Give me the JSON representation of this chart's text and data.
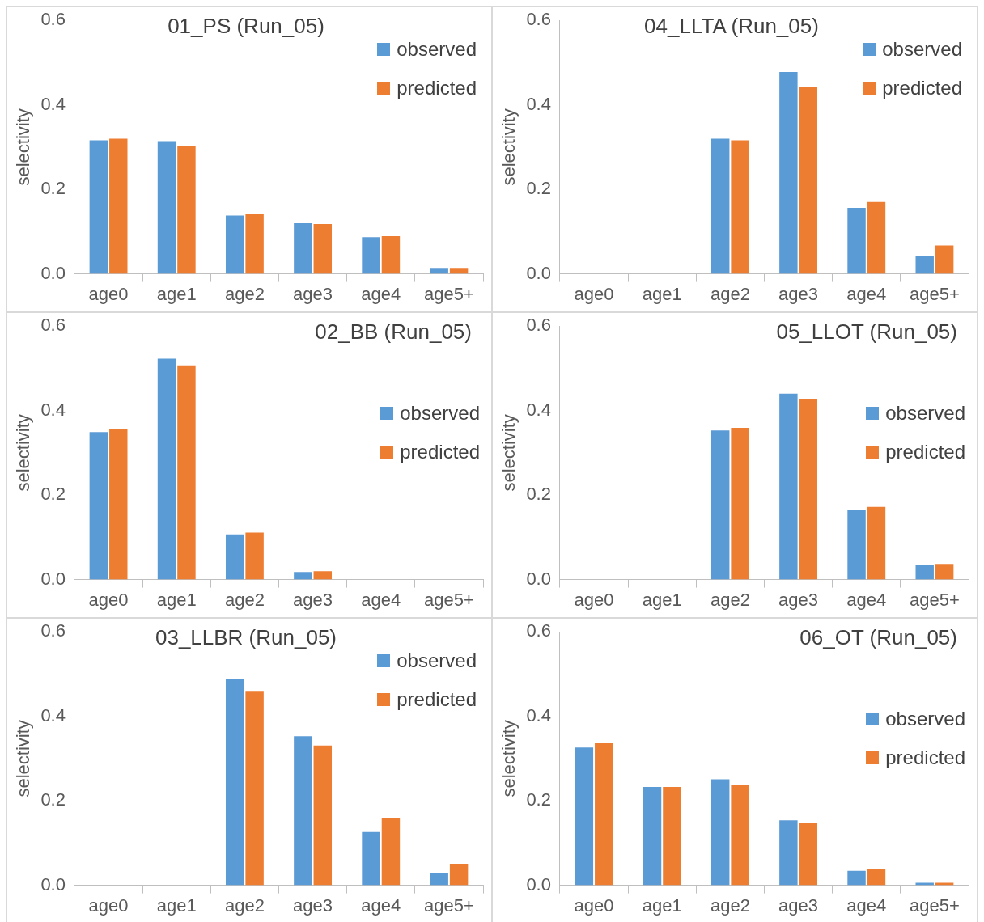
{
  "chart_data": [
    {
      "type": "bar",
      "title": "01_PS (Run_05)",
      "ylabel": "selectivity",
      "categories": [
        "age0",
        "age1",
        "age2",
        "age3",
        "age4",
        "age5+"
      ],
      "series": [
        {
          "name": "observed",
          "color": "#5b9bd5",
          "values": [
            0.316,
            0.314,
            0.138,
            0.12,
            0.087,
            0.014
          ]
        },
        {
          "name": "predicted",
          "color": "#ed7d31",
          "values": [
            0.32,
            0.302,
            0.142,
            0.118,
            0.089,
            0.014
          ]
        }
      ],
      "ylim": [
        0,
        0.6
      ],
      "yticks": [
        {
          "value": 0,
          "label": "0.0"
        },
        {
          "value": 0.2,
          "label": "0.2"
        },
        {
          "value": 0.4,
          "label": "0.4"
        },
        {
          "value": 0.6,
          "label": "0.6"
        }
      ],
      "legend": "top right"
    },
    {
      "type": "bar",
      "title": "04_LLTA (Run_05)",
      "ylabel": "selectivity",
      "categories": [
        "age0",
        "age1",
        "age2",
        "age3",
        "age4",
        "age5+"
      ],
      "series": [
        {
          "name": "observed",
          "color": "#5b9bd5",
          "values": [
            0,
            0,
            0.32,
            0.478,
            0.156,
            0.043
          ]
        },
        {
          "name": "predicted",
          "color": "#ed7d31",
          "values": [
            0,
            0,
            0.316,
            0.442,
            0.17,
            0.067
          ]
        }
      ],
      "ylim": [
        0,
        0.6
      ],
      "yticks": [
        {
          "value": 0,
          "label": "0.0"
        },
        {
          "value": 0.2,
          "label": "0.2"
        },
        {
          "value": 0.4,
          "label": "0.4"
        },
        {
          "value": 0.6,
          "label": "0.6"
        }
      ],
      "legend": "top right"
    },
    {
      "type": "bar",
      "title": "02_BB (Run_05)",
      "ylabel": "selectivity",
      "categories": [
        "age0",
        "age1",
        "age2",
        "age3",
        "age4",
        "age5+"
      ],
      "series": [
        {
          "name": "observed",
          "color": "#5b9bd5",
          "values": [
            0.349,
            0.523,
            0.107,
            0.018,
            0,
            0
          ]
        },
        {
          "name": "predicted",
          "color": "#ed7d31",
          "values": [
            0.357,
            0.507,
            0.111,
            0.02,
            0,
            0
          ]
        }
      ],
      "ylim": [
        0,
        0.6
      ],
      "yticks": [
        {
          "value": 0,
          "label": "0.0"
        },
        {
          "value": 0.2,
          "label": "0.2"
        },
        {
          "value": 0.4,
          "label": "0.4"
        },
        {
          "value": 0.6,
          "label": "0.6"
        }
      ],
      "legend": "right"
    },
    {
      "type": "bar",
      "title": "05_LLOT (Run_05)",
      "ylabel": "selectivity",
      "categories": [
        "age0",
        "age1",
        "age2",
        "age3",
        "age4",
        "age5+"
      ],
      "series": [
        {
          "name": "observed",
          "color": "#5b9bd5",
          "values": [
            0,
            0,
            0.353,
            0.44,
            0.166,
            0.034
          ]
        },
        {
          "name": "predicted",
          "color": "#ed7d31",
          "values": [
            0,
            0,
            0.359,
            0.428,
            0.172,
            0.037
          ]
        }
      ],
      "ylim": [
        0,
        0.6
      ],
      "yticks": [
        {
          "value": 0,
          "label": "0.0"
        },
        {
          "value": 0.2,
          "label": "0.2"
        },
        {
          "value": 0.4,
          "label": "0.4"
        },
        {
          "value": 0.6,
          "label": "0.6"
        }
      ],
      "legend": "right"
    },
    {
      "type": "bar",
      "title": "03_LLBR (Run_05)",
      "ylabel": "selectivity",
      "categories": [
        "age0",
        "age1",
        "age2",
        "age3",
        "age4",
        "age5+"
      ],
      "series": [
        {
          "name": "observed",
          "color": "#5b9bd5",
          "values": [
            0,
            0,
            0.489,
            0.353,
            0.126,
            0.028
          ]
        },
        {
          "name": "predicted",
          "color": "#ed7d31",
          "values": [
            0,
            0,
            0.458,
            0.331,
            0.158,
            0.051
          ]
        }
      ],
      "ylim": [
        0,
        0.6
      ],
      "yticks": [
        {
          "value": 0,
          "label": "0.0"
        },
        {
          "value": 0.2,
          "label": "0.2"
        },
        {
          "value": 0.4,
          "label": "0.4"
        },
        {
          "value": 0.6,
          "label": "0.6"
        }
      ],
      "legend": "top right"
    },
    {
      "type": "bar",
      "title": "06_OT (Run_05)",
      "ylabel": "selectivity",
      "categories": [
        "age0",
        "age1",
        "age2",
        "age3",
        "age4",
        "age5+"
      ],
      "series": [
        {
          "name": "observed",
          "color": "#5b9bd5",
          "values": [
            0.326,
            0.233,
            0.251,
            0.154,
            0.034,
            0.006
          ]
        },
        {
          "name": "predicted",
          "color": "#ed7d31",
          "values": [
            0.336,
            0.233,
            0.237,
            0.148,
            0.039,
            0.006
          ]
        }
      ],
      "ylim": [
        0,
        0.6
      ],
      "yticks": [
        {
          "value": 0,
          "label": "0.0"
        },
        {
          "value": 0.2,
          "label": "0.2"
        },
        {
          "value": 0.4,
          "label": "0.4"
        },
        {
          "value": 0.6,
          "label": "0.6"
        }
      ],
      "legend": "right"
    }
  ]
}
